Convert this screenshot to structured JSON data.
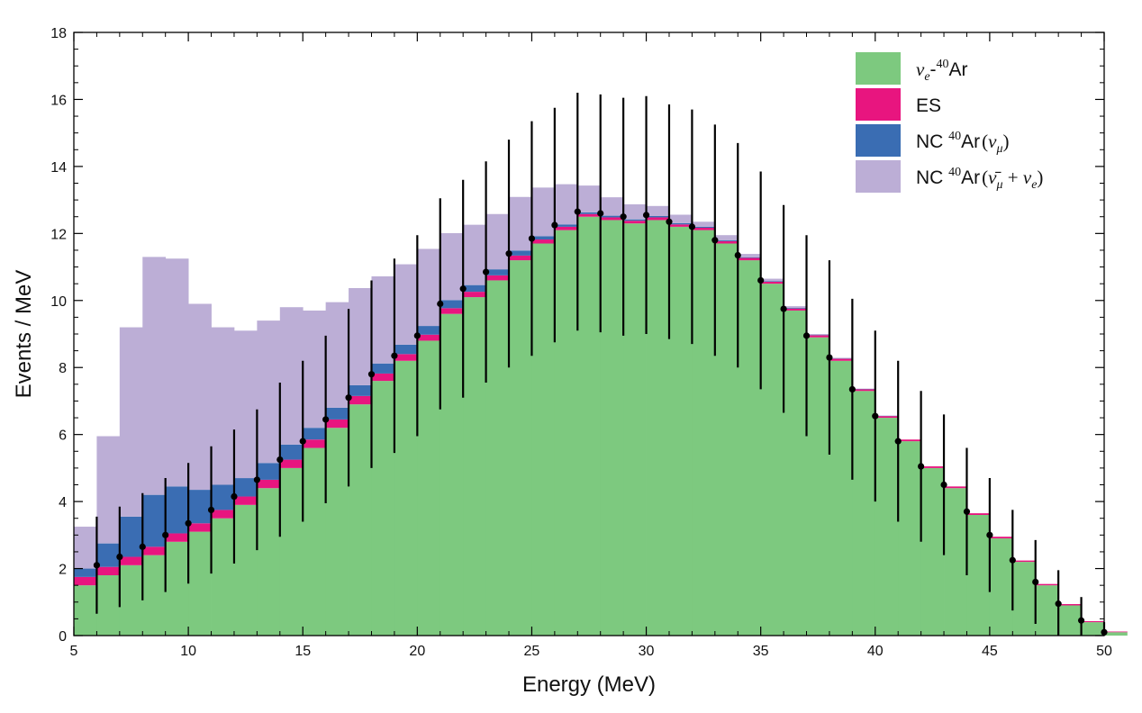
{
  "chart_data": {
    "type": "stacked-histogram",
    "title": "",
    "xlabel": "Energy (MeV)",
    "ylabel": "Events / MeV",
    "xlim": [
      5,
      50
    ],
    "ylim": [
      0,
      18
    ],
    "x_ticks": [
      5,
      10,
      15,
      20,
      25,
      30,
      35,
      40,
      45,
      50
    ],
    "y_ticks": [
      0,
      2,
      4,
      6,
      8,
      10,
      12,
      14,
      16,
      18
    ],
    "legend_position": "top-right",
    "bin_edges_start": 5,
    "bin_width": 1,
    "series": [
      {
        "name": "νe-40Ar",
        "color": "#7dc97f",
        "values": [
          1.5,
          1.8,
          2.1,
          2.4,
          2.8,
          3.1,
          3.5,
          3.9,
          4.4,
          5.0,
          5.6,
          6.2,
          6.9,
          7.6,
          8.2,
          8.8,
          9.6,
          10.1,
          10.6,
          11.2,
          11.7,
          12.1,
          12.5,
          12.4,
          12.3,
          12.4,
          12.2,
          12.1,
          11.7,
          11.2,
          10.5,
          9.7,
          8.9,
          8.2,
          7.3,
          6.5,
          5.8,
          5.0,
          4.4,
          3.6,
          2.9,
          2.2,
          1.5,
          0.9,
          0.4,
          0.1
        ]
      },
      {
        "name": "ES",
        "color": "#e8157f",
        "values": [
          0.25,
          0.25,
          0.25,
          0.25,
          0.25,
          0.25,
          0.25,
          0.25,
          0.25,
          0.25,
          0.25,
          0.25,
          0.25,
          0.22,
          0.2,
          0.18,
          0.17,
          0.16,
          0.15,
          0.14,
          0.12,
          0.1,
          0.08,
          0.08,
          0.08,
          0.08,
          0.07,
          0.07,
          0.07,
          0.07,
          0.06,
          0.06,
          0.06,
          0.06,
          0.05,
          0.05,
          0.05,
          0.05,
          0.05,
          0.05,
          0.05,
          0.04,
          0.04,
          0.04,
          0.03,
          0.02
        ]
      },
      {
        "name": "NC 40Ar (νμ)",
        "color": "#3a6db3",
        "values": [
          0.25,
          0.7,
          1.2,
          1.55,
          1.4,
          1.0,
          0.75,
          0.55,
          0.5,
          0.45,
          0.35,
          0.35,
          0.32,
          0.3,
          0.28,
          0.26,
          0.24,
          0.2,
          0.18,
          0.15,
          0.1,
          0.07,
          0.05,
          0.05,
          0.04,
          0.04,
          0.04,
          0.03,
          0.03,
          0.02,
          0.02,
          0.02,
          0.01,
          0.01,
          0.01,
          0.01,
          0.0,
          0.0,
          0.0,
          0.0,
          0.0,
          0.0,
          0.0,
          0.0,
          0.0,
          0.0
        ]
      },
      {
        "name": "NC 40Ar (ν̄μ + νe)",
        "color": "#bcaed6",
        "values": [
          1.25,
          3.2,
          5.65,
          7.1,
          6.8,
          5.55,
          4.7,
          4.4,
          4.25,
          4.1,
          3.5,
          3.15,
          2.9,
          2.6,
          2.4,
          2.3,
          2.0,
          1.8,
          1.65,
          1.6,
          1.45,
          1.2,
          0.8,
          0.55,
          0.45,
          0.3,
          0.25,
          0.15,
          0.15,
          0.1,
          0.07,
          0.05,
          0.03,
          0.02,
          0.01,
          0.0,
          0.0,
          0.0,
          0.0,
          0.0,
          0.0,
          0.0,
          0.0,
          0.0,
          0.0,
          0.0
        ]
      }
    ],
    "data_points": {
      "name": "data",
      "color": "#000000",
      "x": [
        6,
        7,
        8,
        9,
        10,
        11,
        12,
        13,
        14,
        15,
        16,
        17,
        18,
        19,
        20,
        21,
        22,
        23,
        24,
        25,
        26,
        27,
        28,
        29,
        30,
        31,
        32,
        33,
        34,
        35,
        36,
        37,
        38,
        39,
        40,
        41,
        42,
        43,
        44,
        45,
        46,
        47,
        48,
        49,
        50
      ],
      "y": [
        2.1,
        2.35,
        2.65,
        3.0,
        3.35,
        3.75,
        4.15,
        4.65,
        5.25,
        5.8,
        6.45,
        7.1,
        7.8,
        8.35,
        8.95,
        9.9,
        10.35,
        10.85,
        11.4,
        11.85,
        12.25,
        12.65,
        12.6,
        12.5,
        12.55,
        12.35,
        12.2,
        11.8,
        11.35,
        10.6,
        9.75,
        8.95,
        8.3,
        7.35,
        6.55,
        5.8,
        5.05,
        4.5,
        3.7,
        3.0,
        2.25,
        1.6,
        0.95,
        0.45,
        0.1
      ],
      "err": [
        1.45,
        1.5,
        1.6,
        1.7,
        1.8,
        1.9,
        2.0,
        2.1,
        2.3,
        2.4,
        2.5,
        2.65,
        2.8,
        2.9,
        3.0,
        3.15,
        3.25,
        3.3,
        3.4,
        3.5,
        3.5,
        3.55,
        3.55,
        3.55,
        3.55,
        3.5,
        3.5,
        3.45,
        3.35,
        3.25,
        3.1,
        3.0,
        2.9,
        2.7,
        2.55,
        2.4,
        2.25,
        2.1,
        1.9,
        1.7,
        1.5,
        1.25,
        1.0,
        0.7,
        0.3
      ]
    }
  },
  "legend": {
    "items": [
      {
        "key": "nue",
        "color": "#7dc97f"
      },
      {
        "key": "es",
        "color": "#e8157f",
        "label": "ES"
      },
      {
        "key": "nc1",
        "color": "#3a6db3"
      },
      {
        "key": "nc2",
        "color": "#bcaed6"
      }
    ],
    "nue_label": {
      "nu": "ν",
      "sub": "e",
      "dash": "-",
      "sup": "40",
      "ar": "Ar"
    },
    "nc1_label": {
      "nc": "NC ",
      "sup": "40",
      "ar": "Ar",
      "open": "(",
      "nu": "ν",
      "sub": "μ",
      "close": ")"
    },
    "nc2_label": {
      "nc": "NC ",
      "sup": "40",
      "ar": "Ar",
      "open": "(",
      "nubar": "ν̄",
      "sub1": "μ",
      "plus": " + ",
      "nu": "ν",
      "sub2": "e",
      "close": ")"
    }
  }
}
